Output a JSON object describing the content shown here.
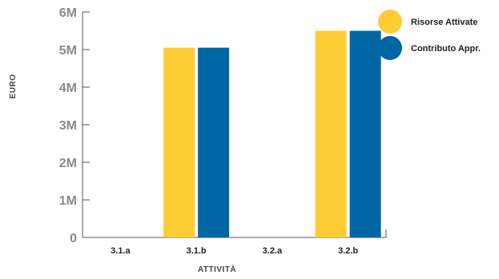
{
  "chart_data": {
    "type": "bar",
    "xlabel": "ATTIVITÀ",
    "ylabel": "EURO",
    "ylim": [
      0,
      6000000
    ],
    "yticks": [
      0,
      1000000,
      2000000,
      3000000,
      4000000,
      5000000,
      6000000
    ],
    "ytick_labels": [
      "0",
      "1M",
      "2M",
      "3M",
      "4M",
      "5M",
      "6M"
    ],
    "categories": [
      "3.1.a",
      "3.1.b",
      "3.2.a",
      "3.2.b"
    ],
    "series": [
      {
        "name": "Risorse Attivate",
        "color": "#FFCC33",
        "values": [
          0,
          5050000,
          0,
          5500000
        ]
      },
      {
        "name": "Contributo Appr.",
        "color": "#0067A5",
        "values": [
          0,
          5050000,
          0,
          5500000
        ]
      }
    ],
    "grid": false,
    "legend": "top-right"
  }
}
